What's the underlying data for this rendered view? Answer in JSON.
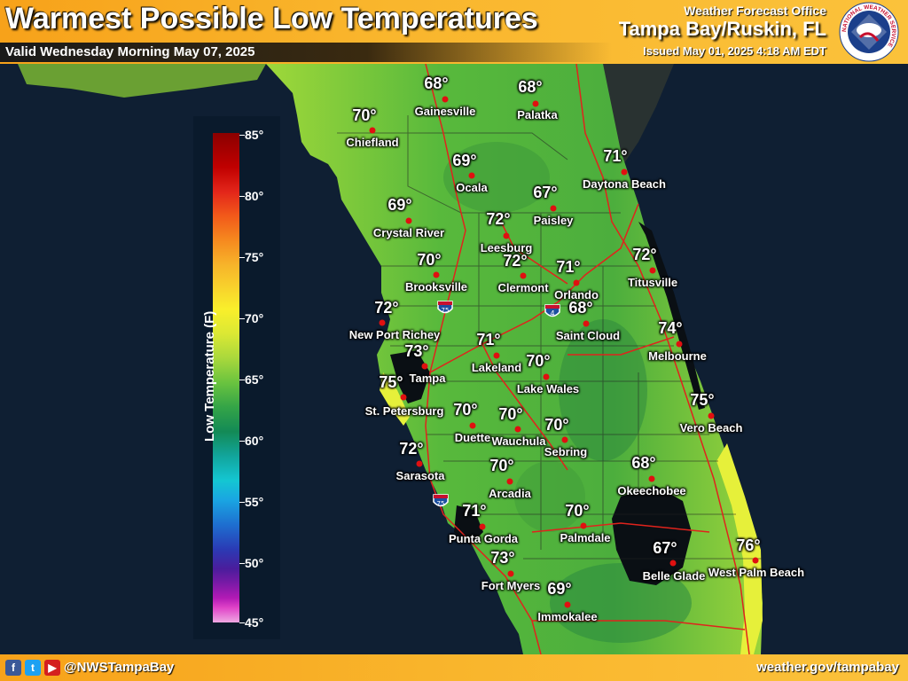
{
  "header": {
    "title": "Warmest Possible Low Temperatures",
    "valid": "Valid Wednesday Morning May 07, 2025",
    "office_line": "Weather Forecast Office",
    "office_name": "Tampa Bay/Ruskin, FL",
    "issued": "Issued May 01, 2025 4:18 AM EDT",
    "logo_text": "NATIONAL WEATHER SERVICE"
  },
  "legend": {
    "title": "Low Temperature (F)",
    "ticks": [
      "85°",
      "80°",
      "75°",
      "70°",
      "65°",
      "60°",
      "55°",
      "50°",
      "45°"
    ],
    "min": 45,
    "max": 85
  },
  "cities": [
    {
      "name": "Gainesville",
      "temp": "68°"
    },
    {
      "name": "Palatka",
      "temp": "68°"
    },
    {
      "name": "Chiefland",
      "temp": "70°"
    },
    {
      "name": "Ocala",
      "temp": "69°"
    },
    {
      "name": "Daytona Beach",
      "temp": "71°"
    },
    {
      "name": "Paisley",
      "temp": "67°"
    },
    {
      "name": "Crystal River",
      "temp": "69°"
    },
    {
      "name": "Leesburg",
      "temp": "72°"
    },
    {
      "name": "Clermont",
      "temp": "72°"
    },
    {
      "name": "Brooksville",
      "temp": "70°"
    },
    {
      "name": "Orlando",
      "temp": "71°"
    },
    {
      "name": "Titusville",
      "temp": "72°"
    },
    {
      "name": "New Port Richey",
      "temp": "72°"
    },
    {
      "name": "Saint Cloud",
      "temp": "68°"
    },
    {
      "name": "Melbourne",
      "temp": "74°"
    },
    {
      "name": "Tampa",
      "temp": "73°"
    },
    {
      "name": "Lakeland",
      "temp": "71°"
    },
    {
      "name": "Lake Wales",
      "temp": "70°"
    },
    {
      "name": "St. Petersburg",
      "temp": "75°"
    },
    {
      "name": "Duette",
      "temp": "70°"
    },
    {
      "name": "Wauchula",
      "temp": "70°"
    },
    {
      "name": "Sebring",
      "temp": "70°"
    },
    {
      "name": "Vero Beach",
      "temp": "75°"
    },
    {
      "name": "Sarasota",
      "temp": "72°"
    },
    {
      "name": "Arcadia",
      "temp": "70°"
    },
    {
      "name": "Okeechobee",
      "temp": "68°"
    },
    {
      "name": "Punta Gorda",
      "temp": "71°"
    },
    {
      "name": "Palmdale",
      "temp": "70°"
    },
    {
      "name": "Fort Myers",
      "temp": "73°"
    },
    {
      "name": "Belle Glade",
      "temp": "67°"
    },
    {
      "name": "West Palm Beach",
      "temp": "76°"
    },
    {
      "name": "Immokalee",
      "temp": "69°"
    }
  ],
  "highways": [
    "75",
    "4",
    "75"
  ],
  "footer": {
    "social_icons": [
      "facebook-icon",
      "twitter-icon",
      "youtube-icon"
    ],
    "handle": "@NWSTampaBay",
    "website": "weather.gov/tampabay"
  },
  "colors": {
    "header_orange": "#f9b52c",
    "land_green": "#5fbf3a",
    "water": "#0f1f33",
    "city_dot": "#e01010"
  }
}
